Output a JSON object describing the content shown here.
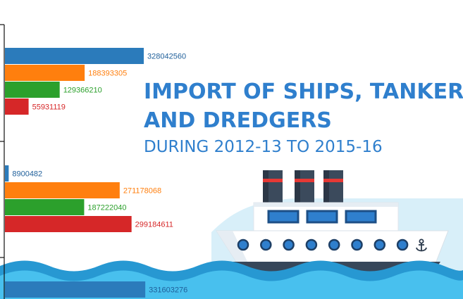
{
  "title": {
    "line1": "IMPORT OF SHIPS, TANKERS",
    "line2": "AND DREDGERS",
    "subtitle": "DURING 2012-13 TO 2015-16"
  },
  "colors": {
    "background": "#ffffff",
    "sky": "#cfeaf7",
    "water_dark": "#2798d2",
    "water_light": "#48c0ee",
    "title": "#2f7fcd"
  },
  "chart_data": {
    "type": "bar",
    "orientation": "horizontal",
    "title": "IMPORT OF SHIPS, TANKERS AND DREDGERS DURING 2012-13 TO 2015-16",
    "groups": [
      {
        "values": [
          328042560,
          188393305,
          129366210,
          55931119
        ],
        "labels": [
          "328042560",
          "188393305",
          "129366210",
          "55931119"
        ]
      },
      {
        "values": [
          8900482,
          271178068,
          187222040,
          299184611
        ],
        "labels": [
          "8900482",
          "271178068",
          "187222040",
          "299184611"
        ]
      },
      {
        "values": [
          331603276
        ],
        "labels": [
          "331603276"
        ]
      }
    ],
    "series_colors": [
      "#2b7bbb",
      "#ff7f0e",
      "#2ca02c",
      "#d62728"
    ],
    "label_colors": [
      "#1f5f9a",
      "#ff7f0e",
      "#2ca02c",
      "#d62728"
    ],
    "xlim": [
      0,
      1000000000
    ],
    "grid": false,
    "legend": "none"
  },
  "illustration": {
    "type": "cruise-ship-icon",
    "anchor_icon": "anchor-icon",
    "porthole_count": 8,
    "window_count": 3,
    "funnel_count": 3
  }
}
